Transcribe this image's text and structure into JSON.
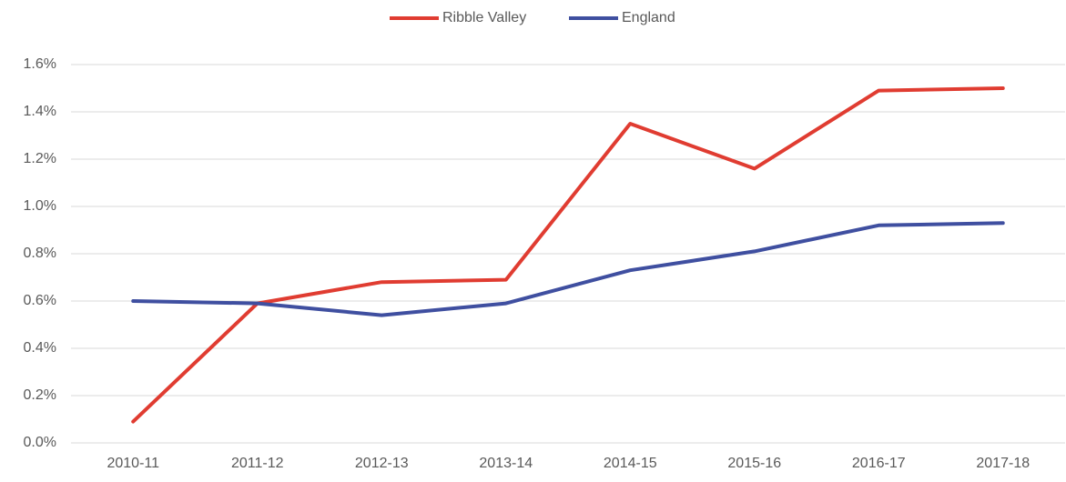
{
  "chart_data": {
    "type": "line",
    "categories": [
      "2010-11",
      "2011-12",
      "2012-13",
      "2013-14",
      "2014-15",
      "2015-16",
      "2016-17",
      "2017-18"
    ],
    "series": [
      {
        "name": "Ribble Valley",
        "color": "#e03c31",
        "values": [
          0.09,
          0.59,
          0.68,
          0.69,
          1.35,
          1.16,
          1.49,
          1.5
        ]
      },
      {
        "name": "England",
        "color": "#3f4fa0",
        "values": [
          0.6,
          0.59,
          0.54,
          0.59,
          0.73,
          0.81,
          0.92,
          0.93
        ]
      }
    ],
    "ylim": [
      0,
      1.6
    ],
    "yticks": [
      {
        "value": 0,
        "label": "0.0%"
      },
      {
        "value": 0.2,
        "label": "0.2%"
      },
      {
        "value": 0.4,
        "label": "0.4%"
      },
      {
        "value": 0.6,
        "label": "0.6%"
      },
      {
        "value": 0.8,
        "label": "0.8%"
      },
      {
        "value": 1.0,
        "label": "1.0%"
      },
      {
        "value": 1.2,
        "label": "1.2%"
      },
      {
        "value": 1.4,
        "label": "1.4%"
      },
      {
        "value": 1.6,
        "label": "1.6%"
      }
    ],
    "grid": true,
    "legend": "top"
  }
}
